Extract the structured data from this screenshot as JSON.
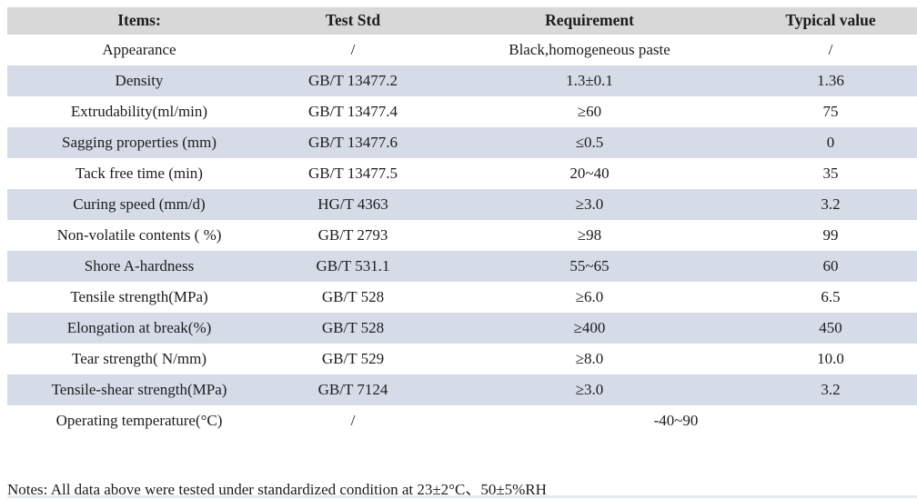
{
  "colors": {
    "header_bg": "#d8d8d8",
    "row_shade": "#d5dce8",
    "text": "#1c1c1c"
  },
  "table": {
    "headers": [
      {
        "label": "Items:"
      },
      {
        "label": "Test Std"
      },
      {
        "label": "Requirement"
      },
      {
        "label": "Typical value"
      }
    ],
    "rows": [
      {
        "item": "Appearance",
        "std": "/",
        "req": "Black,homogeneous paste",
        "typical": "/",
        "shaded": false,
        "merged": false
      },
      {
        "item": "Density",
        "std": "GB/T 13477.2",
        "req": "1.3±0.1",
        "typical": "1.36",
        "shaded": true,
        "merged": false
      },
      {
        "item": "Extrudability(ml/min)",
        "std": "GB/T 13477.4",
        "req": "≥60",
        "typical": "75",
        "shaded": false,
        "merged": false
      },
      {
        "item": "Sagging properties (mm)",
        "std": "GB/T 13477.6",
        "req": "≤0.5",
        "typical": "0",
        "shaded": true,
        "merged": false
      },
      {
        "item": "Tack free time (min)",
        "std": "GB/T 13477.5",
        "req": "20~40",
        "typical": "35",
        "shaded": false,
        "merged": false
      },
      {
        "item": "Curing speed (mm/d)",
        "std": "HG/T 4363",
        "req": "≥3.0",
        "typical": "3.2",
        "shaded": true,
        "merged": false
      },
      {
        "item": "Non-volatile contents ( %)",
        "std": "GB/T 2793",
        "req": "≥98",
        "typical": "99",
        "shaded": false,
        "merged": false
      },
      {
        "item": "Shore A-hardness",
        "std": "GB/T 531.1",
        "req": "55~65",
        "typical": "60",
        "shaded": true,
        "merged": false
      },
      {
        "item": "Tensile strength(MPa)",
        "std": "GB/T 528",
        "req": "≥6.0",
        "typical": "6.5",
        "shaded": false,
        "merged": false
      },
      {
        "item": "Elongation at break(%)",
        "std": "GB/T 528",
        "req": "≥400",
        "typical": "450",
        "shaded": true,
        "merged": false
      },
      {
        "item": "Tear strength( N/mm)",
        "std": "GB/T 529",
        "req": "≥8.0",
        "typical": "10.0",
        "shaded": false,
        "merged": false
      },
      {
        "item": "Tensile-shear strength(MPa)",
        "std": "GB/T 7124",
        "req": "≥3.0",
        "typical": "3.2",
        "shaded": true,
        "merged": false
      },
      {
        "item": "Operating temperature(°C)",
        "std": "/",
        "req": "-40~90",
        "typical": "",
        "shaded": false,
        "merged": true
      }
    ]
  },
  "notes": "Notes: All data above were tested under standardized condition at 23±2°C、50±5%RH"
}
